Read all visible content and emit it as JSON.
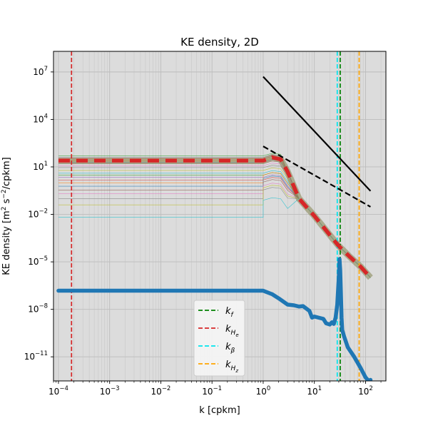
{
  "chart_data": {
    "type": "line",
    "title": "KE density, 2D",
    "xlabel": "k [cpkm]",
    "ylabel_parts": [
      "KE density [m",
      "2",
      " s",
      "−2",
      "/cpkm]"
    ],
    "xscale": "log",
    "yscale": "log",
    "xlim": [
      8e-05,
      250
    ],
    "ylim": [
      3e-13,
      200000000.0
    ],
    "grid": true,
    "background": "#dcdcdc",
    "x_ticks": [
      {
        "v": 0.0001,
        "m": "10",
        "e": "−4"
      },
      {
        "v": 0.001,
        "m": "10",
        "e": "−3"
      },
      {
        "v": 0.01,
        "m": "10",
        "e": "−2"
      },
      {
        "v": 0.1,
        "m": "10",
        "e": "−1"
      },
      {
        "v": 1,
        "m": "10",
        "e": "0"
      },
      {
        "v": 10,
        "m": "10",
        "e": "1"
      },
      {
        "v": 100,
        "m": "10",
        "e": "2"
      }
    ],
    "y_ticks": [
      {
        "v": 1e-11,
        "m": "10",
        "e": "−11"
      },
      {
        "v": 1e-08,
        "m": "10",
        "e": "−8"
      },
      {
        "v": 1e-05,
        "m": "10",
        "e": "−5"
      },
      {
        "v": 0.01,
        "m": "10",
        "e": "−2"
      },
      {
        "v": 10,
        "m": "10",
        "e": "1"
      },
      {
        "v": 10000,
        "m": "10",
        "e": "4"
      },
      {
        "v": 10000000,
        "m": "10",
        "e": "7"
      }
    ],
    "vlines": [
      {
        "x": 32,
        "color": "#008000",
        "legend": "k",
        "sub": "f"
      },
      {
        "x": 0.00018,
        "color": "#d62728",
        "legend": "k",
        "sub": "H",
        "subsub": "e"
      },
      {
        "x": 28,
        "color": "#00e5ee",
        "legend": "k",
        "sub": "β"
      },
      {
        "x": 75,
        "color": "#ffa500",
        "legend": "k",
        "sub": "H",
        "subsub": "z"
      }
    ],
    "reference_lines": [
      {
        "style": "solid",
        "color": "#000000",
        "x": [
          1,
          125
        ],
        "y": [
          5000000.0,
          0.3
        ]
      },
      {
        "style": "dashed",
        "color": "#000000",
        "x": [
          1,
          125
        ],
        "y": [
          200,
          0.03
        ]
      }
    ],
    "main_series": {
      "color": "#d62728",
      "x": [
        0.0001,
        1,
        1.5,
        2.2,
        3,
        5,
        10,
        20,
        30,
        50,
        80,
        125
      ],
      "y": [
        25,
        25,
        40,
        30,
        5,
        0.1,
        0.008,
        0.0005,
        0.0001,
        2e-05,
        5e-06,
        1e-06
      ]
    },
    "ensemble": {
      "colors": [
        "#2ca02c",
        "#9467bd",
        "#d62728",
        "#ff7f0e",
        "#1f77b4",
        "#8c564b",
        "#e377c2",
        "#7f7f7f",
        "#bcbd22",
        "#17becf"
      ],
      "levels": [
        50,
        40,
        32,
        25,
        20,
        16,
        12,
        9,
        6,
        4,
        3,
        2.2,
        1.5,
        1,
        0.6,
        0.35,
        0.2,
        0.1,
        0.04,
        0.0065
      ]
    },
    "low_series": {
      "color": "#1f77b4",
      "x": [
        0.0001,
        1,
        1.5,
        2,
        3,
        4,
        5,
        6,
        8,
        9,
        10,
        12,
        15,
        17,
        20,
        22,
        24,
        26,
        28,
        30,
        31,
        32,
        33,
        34,
        35,
        38,
        45,
        60,
        80,
        100,
        115,
        125
      ],
      "y": [
        1.5e-07,
        1.5e-07,
        9e-08,
        5e-08,
        2e-08,
        1.8e-08,
        1.5e-08,
        1.6e-08,
        8e-09,
        3e-09,
        3.5e-09,
        3e-09,
        2.5e-09,
        1.3e-09,
        1.1e-09,
        1.5e-09,
        1.2e-09,
        3e-09,
        2e-08,
        1e-06,
        1.5e-05,
        3e-06,
        1e-07,
        3e-09,
        5e-10,
        2e-10,
        4e-11,
        1e-11,
        2e-12,
        5e-13,
        3e-13,
        3.5e-13
      ]
    },
    "legend": {
      "placement": "lower center"
    }
  }
}
